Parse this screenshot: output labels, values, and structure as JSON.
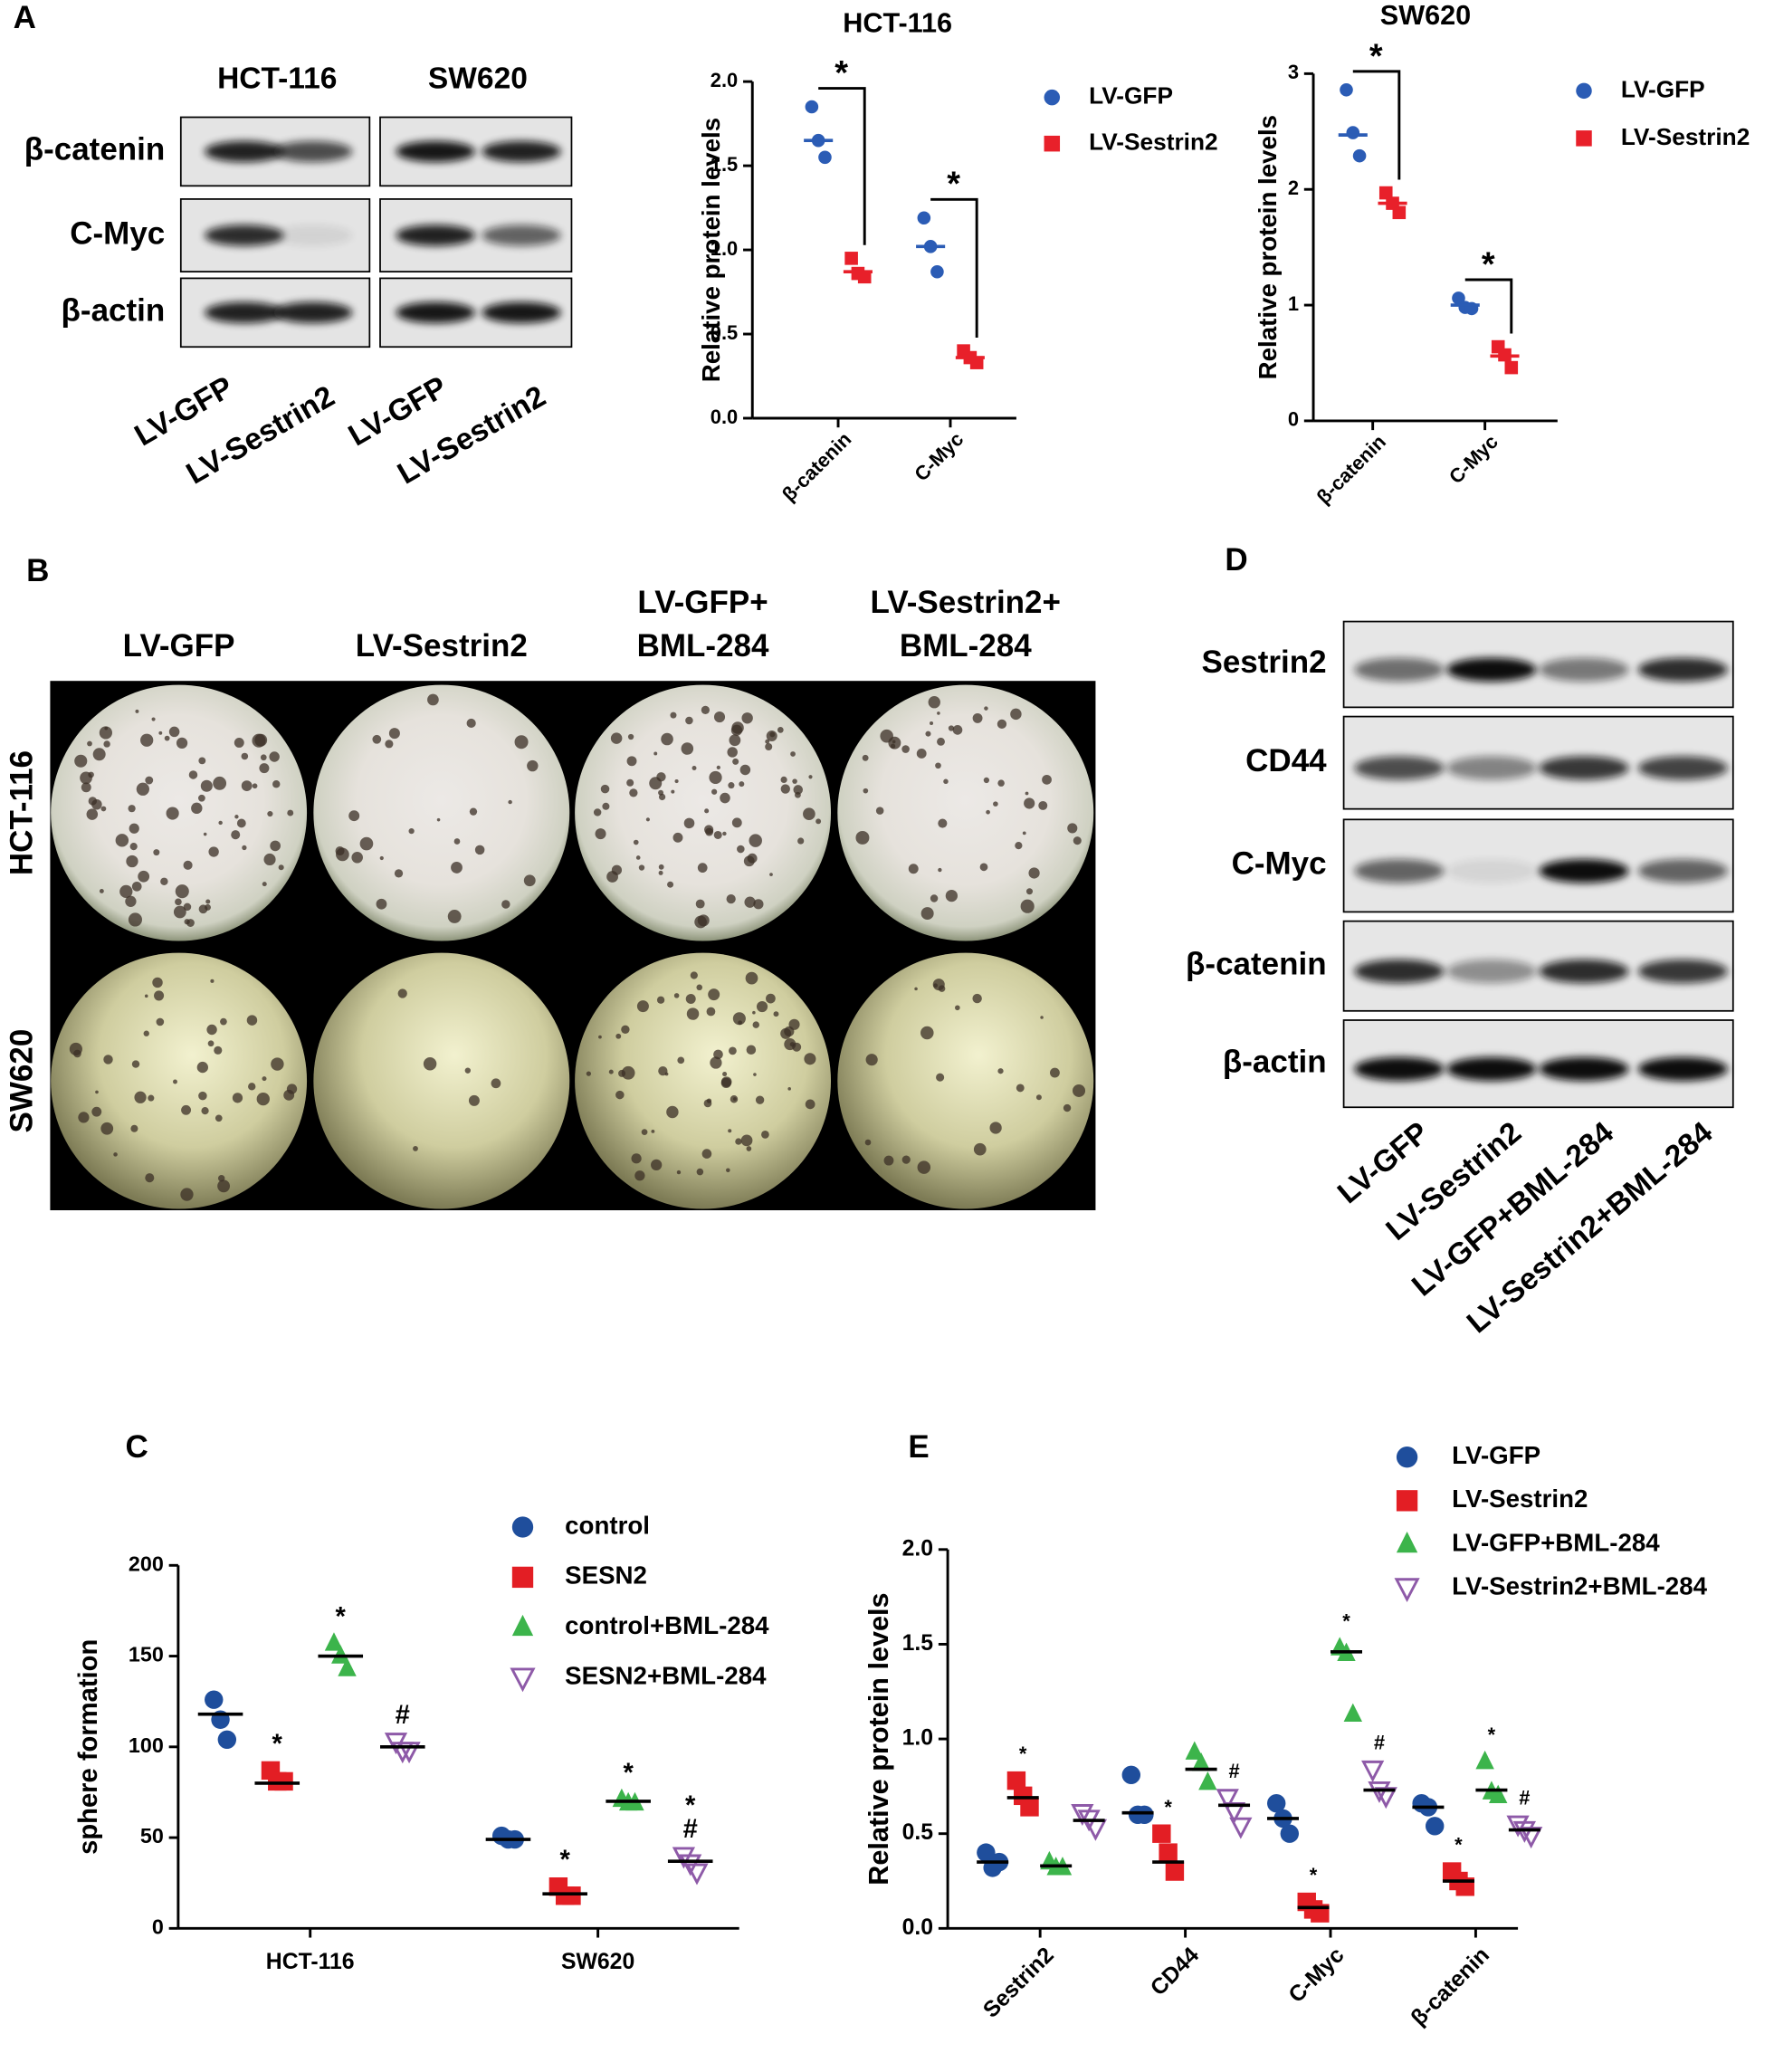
{
  "panel_labels": [
    "A",
    "B",
    "C",
    "D",
    "E"
  ],
  "blot_a": {
    "cell_lines": [
      "HCT-116",
      "SW620"
    ],
    "proteins": [
      "β-catenin",
      "C-Myc",
      "β-actin"
    ],
    "lanes": [
      "LV-GFP",
      "LV-Sestrin2",
      "LV-GFP",
      "LV-Sestrin2"
    ]
  },
  "spheres_b": {
    "columns": [
      [
        "LV-GFP"
      ],
      [
        "LV-Sestrin2"
      ],
      [
        "LV-GFP+",
        "BML-284"
      ],
      [
        "LV-Sestrin2+",
        "BML-284"
      ]
    ],
    "rows": [
      "HCT-116",
      "SW620"
    ]
  },
  "blot_d": {
    "proteins": [
      "Sestrin2",
      "CD44",
      "C-Myc",
      "β-catenin",
      "β-actin"
    ],
    "lanes": [
      "LV-GFP",
      "LV-Sestrin2",
      "LV-GFP+BML-284",
      "LV-Sestrin2+BML-284"
    ]
  },
  "chart_data": [
    {
      "type": "dot",
      "title": "HCT-116",
      "ylabel": "Relative protein levels",
      "categories": [
        "β-catenin",
        "C-Myc"
      ],
      "ylim": [
        0,
        2
      ],
      "yticks": [
        {
          "value": 0,
          "label": "0.0"
        },
        0.5,
        {
          "value": 1,
          "label": "1.0"
        },
        1.5,
        {
          "value": 2,
          "label": "2.0"
        }
      ],
      "series": [
        {
          "name": "LV-GFP",
          "color": "#2b5cb5",
          "marker": "circle",
          "values": [
            [
              1.85,
              1.65,
              1.55
            ],
            [
              1.19,
              1.02,
              0.87
            ]
          ],
          "means": [
            1.65,
            1.02
          ]
        },
        {
          "name": "LV-Sestrin2",
          "color": "#e8202a",
          "marker": "square",
          "values": [
            [
              0.95,
              0.86,
              0.84
            ],
            [
              0.4,
              0.36,
              0.33
            ]
          ],
          "means": [
            0.87,
            0.36
          ]
        }
      ],
      "brackets": [
        {
          "category": 0,
          "label": "*"
        },
        {
          "category": 1,
          "label": "*"
        }
      ]
    },
    {
      "type": "dot",
      "title": "SW620",
      "ylabel": "Relative protein levels",
      "categories": [
        "β-catenin",
        "C-Myc"
      ],
      "ylim": [
        0,
        3
      ],
      "yticks": [
        0,
        1,
        2,
        3
      ],
      "series": [
        {
          "name": "LV-GFP",
          "color": "#2b5cb5",
          "marker": "circle",
          "values": [
            [
              2.86,
              2.49,
              2.29
            ],
            [
              1.06,
              0.98,
              0.97
            ]
          ],
          "means": [
            2.47,
            1.0
          ]
        },
        {
          "name": "LV-Sestrin2",
          "color": "#e8202a",
          "marker": "square",
          "values": [
            [
              1.97,
              1.88,
              1.8
            ],
            [
              0.64,
              0.57,
              0.46
            ]
          ],
          "means": [
            1.88,
            0.56
          ]
        }
      ],
      "brackets": [
        {
          "category": 0,
          "label": "*"
        },
        {
          "category": 1,
          "label": "*"
        }
      ]
    },
    {
      "type": "dot",
      "ylabel": "sphere formation",
      "categories": [
        "HCT-116",
        "SW620"
      ],
      "ylim": [
        0,
        200
      ],
      "yticks": [
        0,
        50,
        100,
        150,
        200
      ],
      "mean_color": "#000000",
      "series": [
        {
          "name": "control",
          "color": "#1f4e9c",
          "marker": "circle",
          "values": [
            [
              126,
              115,
              104
            ],
            [
              51,
              49,
              49
            ]
          ],
          "means": [
            118,
            49
          ],
          "annotations": [
            null,
            null
          ]
        },
        {
          "name": "SESN2",
          "color": "#e31e24",
          "marker": "square",
          "values": [
            [
              87,
              81,
              81
            ],
            [
              23,
              18,
              18
            ]
          ],
          "means": [
            80,
            19
          ],
          "annotations": [
            [
              "*"
            ],
            [
              "*"
            ]
          ]
        },
        {
          "name": "control+BML-284",
          "color": "#3cb44b",
          "marker": "triangle",
          "values": [
            [
              157,
              150,
              143
            ],
            [
              71,
              69,
              69
            ]
          ],
          "means": [
            150,
            70
          ],
          "annotations": [
            [
              "*"
            ],
            [
              "*"
            ]
          ]
        },
        {
          "name": "SESN2+BML-284",
          "color": "#8e5aa8",
          "marker": "triangle-down-open",
          "values": [
            [
              103,
              98,
              98
            ],
            [
              40,
              36,
              31
            ]
          ],
          "means": [
            100,
            37
          ],
          "annotations": [
            [
              "#"
            ],
            [
              "#",
              "*"
            ]
          ]
        }
      ]
    },
    {
      "type": "dot",
      "ylabel": "Relative protein levels",
      "categories": [
        "Sestrin2",
        "CD44",
        "C-Myc",
        "β-catenin"
      ],
      "ylim": [
        0,
        2
      ],
      "yticks": [
        {
          "value": 0,
          "label": "0.0"
        },
        0.5,
        {
          "value": 1,
          "label": "1.0"
        },
        1.5,
        {
          "value": 2,
          "label": "2.0"
        }
      ],
      "mean_color": "#000000",
      "series": [
        {
          "name": "LV-GFP",
          "color": "#1f4e9c",
          "marker": "circle",
          "values": [
            [
              0.4,
              0.32,
              0.35
            ],
            [
              0.81,
              0.6,
              0.6
            ],
            [
              0.66,
              0.58,
              0.5
            ],
            [
              0.66,
              0.64,
              0.54
            ]
          ],
          "means": [
            0.35,
            0.61,
            0.58,
            0.64
          ],
          "annotations": [
            null,
            null,
            null,
            null
          ]
        },
        {
          "name": "LV-Sestrin2",
          "color": "#e31e24",
          "marker": "square",
          "values": [
            [
              0.78,
              0.7,
              0.64
            ],
            [
              0.5,
              0.4,
              0.3
            ],
            [
              0.14,
              0.1,
              0.08
            ],
            [
              0.3,
              0.25,
              0.22
            ]
          ],
          "means": [
            0.69,
            0.35,
            0.11,
            0.25
          ],
          "annotations": [
            [
              "*"
            ],
            [
              "*"
            ],
            [
              "*"
            ],
            [
              "*"
            ]
          ]
        },
        {
          "name": "LV-GFP+BML-284",
          "color": "#3cb44b",
          "marker": "triangle",
          "values": [
            [
              0.35,
              0.32,
              0.32
            ],
            [
              0.93,
              0.87,
              0.77
            ],
            [
              1.48,
              1.45,
              1.13
            ],
            [
              0.88,
              0.72,
              0.7
            ]
          ],
          "means": [
            0.33,
            0.84,
            1.46,
            0.73
          ],
          "annotations": [
            null,
            null,
            [
              "*"
            ],
            [
              "*"
            ]
          ]
        },
        {
          "name": "LV-Sestrin2+BML-284",
          "color": "#8e5aa8",
          "marker": "triangle-down-open",
          "values": [
            [
              0.61,
              0.58,
              0.53
            ],
            [
              0.69,
              0.62,
              0.54
            ],
            [
              0.84,
              0.73,
              0.7
            ],
            [
              0.55,
              0.52,
              0.49
            ]
          ],
          "means": [
            0.57,
            0.65,
            0.73,
            0.52
          ],
          "annotations": [
            null,
            [
              "#"
            ],
            [
              "#"
            ],
            [
              "#"
            ]
          ]
        }
      ]
    }
  ]
}
